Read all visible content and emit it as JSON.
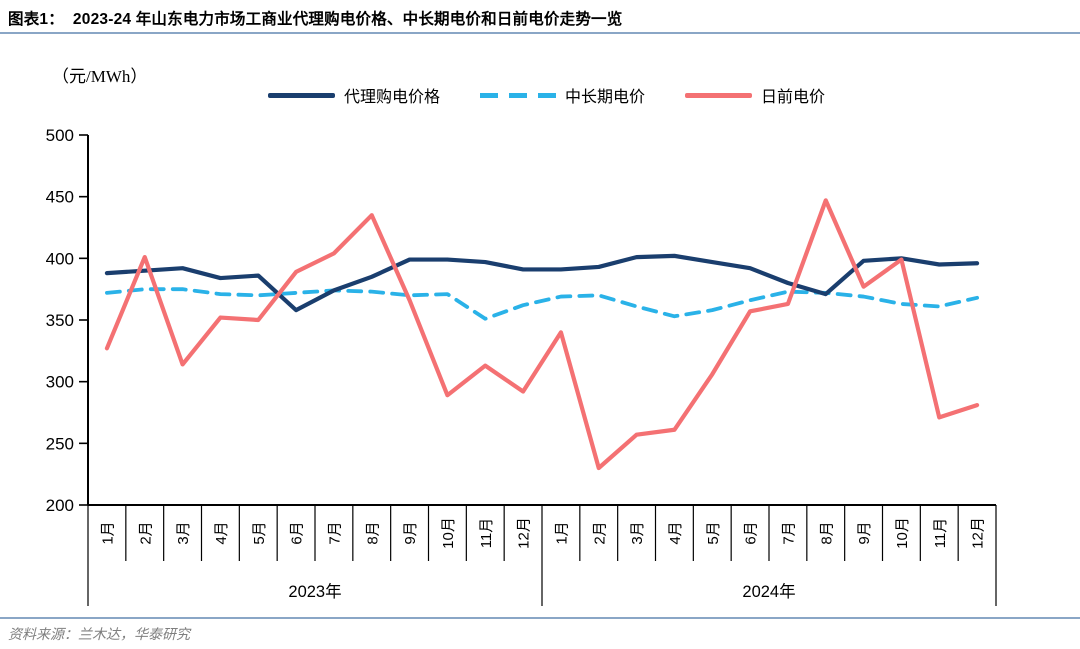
{
  "header": {
    "figure_label": "图表1：",
    "title": "图表1：  2023-24 年山东电力市场工商业代理购电价格、中长期电价和日前电价走势一览"
  },
  "chart_data": {
    "type": "line",
    "title": "2023-24 年山东电力市场工商业代理购电价格、中长期电价和日前电价走势一览",
    "unit_label": "（元/MWh）",
    "ylabel": "元/MWh",
    "ylim": [
      200,
      500
    ],
    "yticks": [
      500,
      450,
      400,
      350,
      300,
      250,
      200
    ],
    "grid": false,
    "legend_position": "top",
    "categories": [
      "1月",
      "2月",
      "3月",
      "4月",
      "5月",
      "6月",
      "7月",
      "8月",
      "9月",
      "10月",
      "11月",
      "12月",
      "1月",
      "2月",
      "3月",
      "4月",
      "5月",
      "6月",
      "7月",
      "8月",
      "9月",
      "10月",
      "11月",
      "12月"
    ],
    "year_groups": [
      {
        "label": "2023年",
        "span": 12
      },
      {
        "label": "2024年",
        "span": 12
      }
    ],
    "series": [
      {
        "name": "代理购电价格",
        "color": "#1a3e6e",
        "style": "solid",
        "values": [
          388,
          390,
          392,
          384,
          386,
          358,
          374,
          385,
          399,
          399,
          397,
          391,
          391,
          393,
          401,
          402,
          397,
          392,
          380,
          371,
          398,
          400,
          395,
          396
        ]
      },
      {
        "name": "中长期电价",
        "color": "#2ab2e8",
        "style": "dashed",
        "values": [
          372,
          375,
          375,
          371,
          370,
          372,
          374,
          373,
          370,
          371,
          351,
          362,
          369,
          370,
          361,
          353,
          358,
          366,
          373,
          372,
          369,
          363,
          361,
          368
        ]
      },
      {
        "name": "日前电价",
        "color": "#f47173",
        "style": "solid",
        "values": [
          327,
          401,
          314,
          352,
          350,
          389,
          404,
          435,
          366,
          289,
          313,
          292,
          340,
          230,
          257,
          261,
          306,
          357,
          363,
          447,
          377,
          399,
          271,
          281
        ]
      }
    ]
  },
  "footer": {
    "source": "资料来源：兰木达，华泰研究"
  },
  "colors": {
    "rule": "#8aa6c6",
    "axis": "#000000",
    "footer_text": "#7f7f7f"
  }
}
